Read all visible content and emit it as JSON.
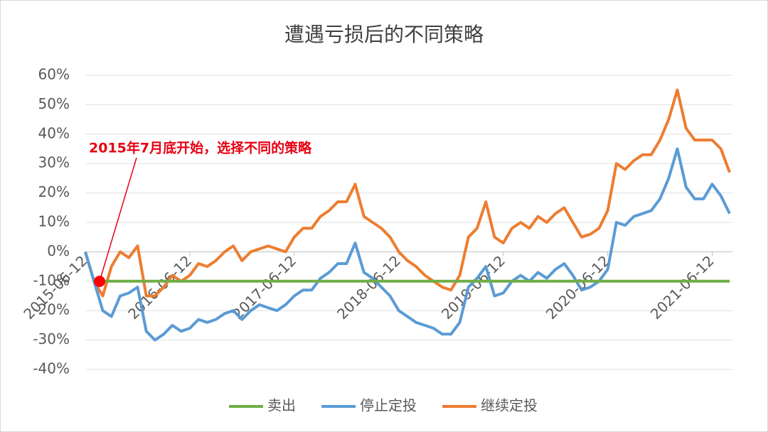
{
  "chart_data": {
    "type": "line",
    "title": "遭遇亏损后的不同策略",
    "annotation": "2015年7月底开始，选择不同的策略",
    "categories": [
      "2015-06-12",
      null,
      null,
      null,
      null,
      null,
      null,
      null,
      null,
      null,
      null,
      null,
      "2016-06-12",
      null,
      null,
      null,
      null,
      null,
      null,
      null,
      null,
      null,
      null,
      null,
      "2017-06-12",
      null,
      null,
      null,
      null,
      null,
      null,
      null,
      null,
      null,
      null,
      null,
      "2018-06-12",
      null,
      null,
      null,
      null,
      null,
      null,
      null,
      null,
      null,
      null,
      null,
      "2019-06-12",
      null,
      null,
      null,
      null,
      null,
      null,
      null,
      null,
      null,
      null,
      null,
      "2020-06-12",
      null,
      null,
      null,
      null,
      null,
      null,
      null,
      null,
      null,
      null,
      null,
      "2021-06-12",
      null,
      null
    ],
    "series": [
      {
        "name": "卖出",
        "color": "#70ad47",
        "values": [
          null,
          -10,
          -10,
          -10,
          -10,
          -10,
          -10,
          -10,
          -10,
          -10,
          -10,
          -10,
          -10,
          -10,
          -10,
          -10,
          -10,
          -10,
          -10,
          -10,
          -10,
          -10,
          -10,
          -10,
          -10,
          -10,
          -10,
          -10,
          -10,
          -10,
          -10,
          -10,
          -10,
          -10,
          -10,
          -10,
          -10,
          -10,
          -10,
          -10,
          -10,
          -10,
          -10,
          -10,
          -10,
          -10,
          -10,
          -10,
          -10,
          -10,
          -10,
          -10,
          -10,
          -10,
          -10,
          -10,
          -10,
          -10,
          -10,
          -10,
          -10,
          -10,
          -10,
          -10,
          -10,
          -10,
          -10,
          -10,
          -10,
          -10,
          -10,
          -10,
          -10,
          -10,
          -10
        ]
      },
      {
        "name": "停止定投",
        "color": "#5b9bd5",
        "values": [
          0,
          -10,
          -20,
          -22,
          -15,
          -14,
          -12,
          -27,
          -30,
          -28,
          -25,
          -27,
          -26,
          -23,
          -24,
          -23,
          -21,
          -20,
          -23,
          -20,
          -18,
          -19,
          -20,
          -18,
          -15,
          -13,
          -13,
          -9,
          -7,
          -4,
          -4,
          3,
          -7,
          -9,
          -12,
          -15,
          -20,
          -22,
          -24,
          -25,
          -26,
          -28,
          -28,
          -24,
          -12,
          -9,
          -5,
          -15,
          -14,
          -10,
          -8,
          -10,
          -7,
          -9,
          -6,
          -4,
          -8,
          -13,
          -12,
          -10,
          -6,
          10,
          9,
          12,
          13,
          14,
          18,
          25,
          35,
          22,
          18,
          18,
          23,
          19,
          13
        ]
      },
      {
        "name": "继续定投",
        "color": "#ed7d31",
        "values": [
          0,
          -10,
          -15,
          -5,
          0,
          -2,
          2,
          -15,
          -15,
          -12,
          -8,
          -10,
          -8,
          -4,
          -5,
          -3,
          0,
          2,
          -3,
          0,
          1,
          2,
          1,
          0,
          5,
          8,
          8,
          12,
          14,
          17,
          17,
          23,
          12,
          10,
          8,
          5,
          0,
          -3,
          -5,
          -8,
          -10,
          -12,
          -13,
          -8,
          5,
          8,
          17,
          5,
          3,
          8,
          10,
          8,
          12,
          10,
          13,
          15,
          10,
          5,
          6,
          8,
          14,
          30,
          28,
          31,
          33,
          33,
          38,
          45,
          55,
          42,
          38,
          38,
          38,
          35,
          27
        ]
      }
    ],
    "ylim": [
      -40,
      60
    ],
    "yticks": [
      {
        "value": -40,
        "label": "-40%"
      },
      {
        "value": -30,
        "label": "-30%"
      },
      {
        "value": -20,
        "label": "-20%"
      },
      {
        "value": -10,
        "label": "-10%"
      },
      {
        "value": 0,
        "label": "0%"
      },
      {
        "value": 10,
        "label": "10%"
      },
      {
        "value": 20,
        "label": "20%"
      },
      {
        "value": 30,
        "label": "30%"
      },
      {
        "value": 40,
        "label": "40%"
      },
      {
        "value": 50,
        "label": "50%"
      },
      {
        "value": 60,
        "label": "60%"
      }
    ],
    "grid": true,
    "legend": "bottom"
  }
}
